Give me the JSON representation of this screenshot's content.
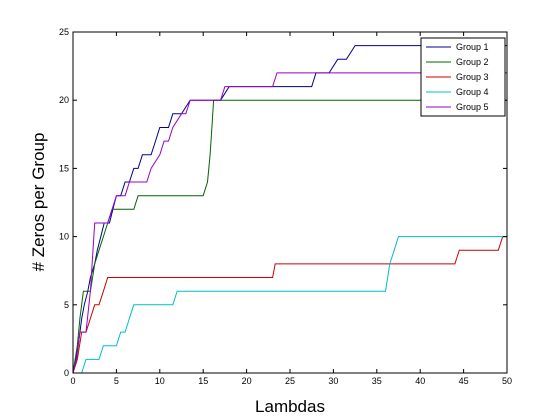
{
  "chart_data": {
    "type": "line",
    "title": "",
    "xlabel": "Lambdas",
    "ylabel": "# Zeros per Group",
    "xlim": [
      0,
      50
    ],
    "ylim": [
      0,
      25
    ],
    "xticks": [
      0,
      5,
      10,
      15,
      20,
      25,
      30,
      35,
      40,
      45,
      50
    ],
    "yticks": [
      0,
      5,
      10,
      15,
      20,
      25
    ],
    "grid": false,
    "legend_position": "top-right",
    "series": [
      {
        "name": "Group 1",
        "color": "#00008b",
        "points": [
          [
            0,
            0
          ],
          [
            0.3,
            1
          ],
          [
            0.6,
            2
          ],
          [
            1,
            4
          ],
          [
            1.3,
            5
          ],
          [
            1.7,
            6
          ],
          [
            2,
            7
          ],
          [
            2.5,
            8
          ],
          [
            2.8,
            9
          ],
          [
            3.2,
            10
          ],
          [
            3.6,
            11
          ],
          [
            4.2,
            11
          ],
          [
            4.6,
            12
          ],
          [
            5,
            13
          ],
          [
            5.5,
            13
          ],
          [
            6,
            14
          ],
          [
            6.5,
            14
          ],
          [
            7,
            15
          ],
          [
            7.5,
            15
          ],
          [
            8,
            16
          ],
          [
            9,
            16
          ],
          [
            9.5,
            17
          ],
          [
            10,
            18
          ],
          [
            11,
            18
          ],
          [
            11.5,
            19
          ],
          [
            12.5,
            19
          ],
          [
            13.5,
            20
          ],
          [
            17,
            20
          ],
          [
            18,
            21
          ],
          [
            27.5,
            21
          ],
          [
            28,
            22
          ],
          [
            29.5,
            22
          ],
          [
            30.5,
            23
          ],
          [
            31.5,
            23
          ],
          [
            32.5,
            24
          ],
          [
            50,
            24
          ]
        ]
      },
      {
        "name": "Group 2",
        "color": "#006400",
        "points": [
          [
            0,
            0
          ],
          [
            0.5,
            2
          ],
          [
            0.8,
            4
          ],
          [
            1.2,
            6
          ],
          [
            2,
            6
          ],
          [
            2.5,
            8
          ],
          [
            3,
            9
          ],
          [
            3.5,
            10
          ],
          [
            4,
            11
          ],
          [
            4.5,
            12
          ],
          [
            5,
            12
          ],
          [
            7,
            12
          ],
          [
            7.5,
            13
          ],
          [
            15,
            13
          ],
          [
            15.5,
            14
          ],
          [
            15.8,
            16
          ],
          [
            16,
            18
          ],
          [
            16.2,
            20
          ],
          [
            50,
            20
          ]
        ]
      },
      {
        "name": "Group 3",
        "color": "#cc0000",
        "points": [
          [
            0,
            0
          ],
          [
            0.5,
            1
          ],
          [
            1,
            3
          ],
          [
            1.5,
            3
          ],
          [
            2,
            4
          ],
          [
            2.5,
            5
          ],
          [
            3,
            5
          ],
          [
            3.5,
            6
          ],
          [
            4,
            7
          ],
          [
            23,
            7
          ],
          [
            23.3,
            8
          ],
          [
            44,
            8
          ],
          [
            44.5,
            9
          ],
          [
            49,
            9
          ],
          [
            49.5,
            10
          ],
          [
            50,
            10
          ]
        ]
      },
      {
        "name": "Group 4",
        "color": "#00bfbf",
        "points": [
          [
            0,
            0
          ],
          [
            1,
            0
          ],
          [
            1.5,
            1
          ],
          [
            3,
            1
          ],
          [
            3.5,
            2
          ],
          [
            5,
            2
          ],
          [
            5.5,
            3
          ],
          [
            6,
            3
          ],
          [
            6.5,
            4
          ],
          [
            7,
            5
          ],
          [
            11.5,
            5
          ],
          [
            12,
            6
          ],
          [
            36,
            6
          ],
          [
            36.5,
            8
          ],
          [
            37,
            9
          ],
          [
            37.5,
            10
          ],
          [
            50,
            10
          ]
        ]
      },
      {
        "name": "Group 5",
        "color": "#9900cc",
        "points": [
          [
            0,
            0
          ],
          [
            0.4,
            1
          ],
          [
            0.8,
            3
          ],
          [
            1.5,
            3
          ],
          [
            2,
            6
          ],
          [
            2.5,
            11
          ],
          [
            4,
            11
          ],
          [
            4.5,
            12
          ],
          [
            5,
            13
          ],
          [
            6,
            13
          ],
          [
            6.5,
            14
          ],
          [
            8.5,
            14
          ],
          [
            9,
            15
          ],
          [
            10,
            16
          ],
          [
            10.5,
            17
          ],
          [
            11,
            17
          ],
          [
            11.5,
            18
          ],
          [
            12.5,
            19
          ],
          [
            13,
            19
          ],
          [
            13.5,
            20
          ],
          [
            17,
            20
          ],
          [
            17.5,
            21
          ],
          [
            23,
            21
          ],
          [
            23.5,
            22
          ],
          [
            50,
            22
          ]
        ]
      }
    ]
  }
}
